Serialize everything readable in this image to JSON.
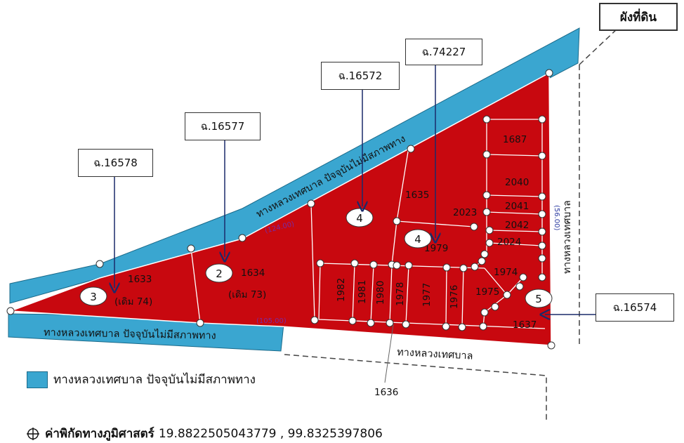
{
  "title_box": "ผังที่ดิน",
  "road_north": "ทางหลวงเทศบาล ปัจจุบันไม่มีสภาพทาง",
  "road_south": "ทางหลวงเทศบาล ปัจจุบันไม่มีสภาพทาง",
  "road_east": "ทางหลวงเทศบาล",
  "road_bottom": "ทางหลวงเทศบาล",
  "dims": {
    "north": "(124.00)",
    "south": "(105.00)",
    "east": "(56.00)"
  },
  "parcels": {
    "p1633": "1633",
    "p1633_old": "(เดิม 74)",
    "p1634": "1634",
    "p1634_old": "(เดิม 73)",
    "p1635": "1635",
    "p1687": "1687",
    "p2040": "2040",
    "p2041": "2041",
    "p2042": "2042",
    "p2023": "2023",
    "p2024": "2024",
    "p1979": "1979",
    "p1974": "1974",
    "p1975": "1975",
    "p1637": "1637",
    "p1982": "1982",
    "p1981": "1981",
    "p1980": "1980",
    "p1978": "1978",
    "p1977": "1977",
    "p1976": "1976",
    "p1636": "1636"
  },
  "markers": {
    "m2": "2",
    "m3": "3",
    "m4a": "4",
    "m4b": "4",
    "m5": "5"
  },
  "callouts": {
    "c16578": "ฉ.16578",
    "c16577": "ฉ.16577",
    "c16572": "ฉ.16572",
    "c74227": "ฉ.74227",
    "c16574": "ฉ.16574"
  },
  "legend": {
    "label": "ทางหลวงเทศบาล ปัจจุบันไม่มีสภาพทาง"
  },
  "coords": {
    "label": "ค่าพิกัดทางภูมิศาสตร์",
    "value": "19.8822505043779 , 99.8325397806"
  },
  "colors": {
    "parcel": "#c8080f",
    "road": "#3aa6d0",
    "callout_line": "#1a2a6a",
    "dim": "#7a2aa0"
  }
}
